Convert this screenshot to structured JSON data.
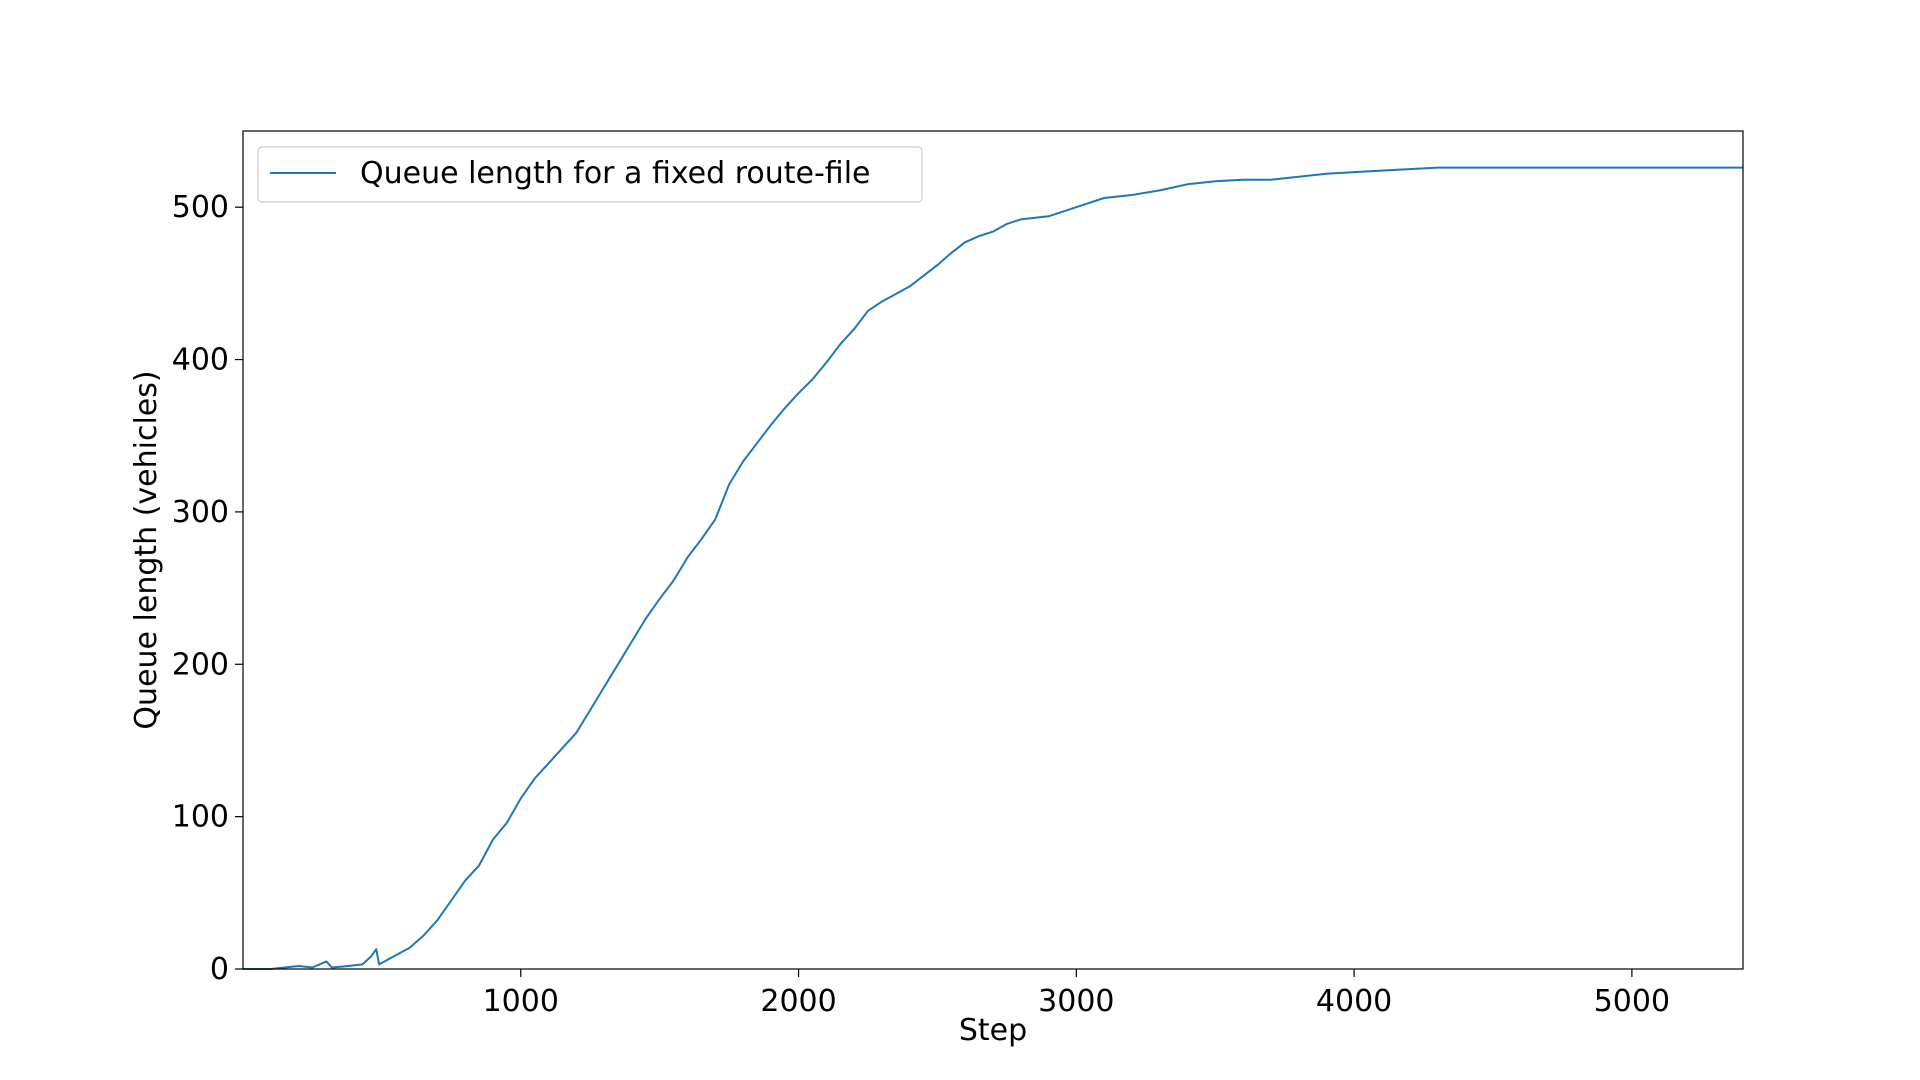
{
  "chart_data": {
    "type": "line",
    "title": "",
    "xlabel": "Step",
    "ylabel": "Queue length (vehicles)",
    "xlim": [
      0,
      5400
    ],
    "ylim": [
      0,
      550
    ],
    "x_ticks": [
      1000,
      2000,
      3000,
      4000,
      5000
    ],
    "y_ticks": [
      0,
      100,
      200,
      300,
      400,
      500
    ],
    "grid": false,
    "legend_position": "top-left",
    "series": [
      {
        "name": "Queue length for a fixed route-file",
        "color": "#1f77b4",
        "points": [
          [
            0,
            0
          ],
          [
            100,
            0
          ],
          [
            150,
            1
          ],
          [
            200,
            2
          ],
          [
            250,
            1
          ],
          [
            300,
            5
          ],
          [
            320,
            1
          ],
          [
            380,
            2
          ],
          [
            430,
            3
          ],
          [
            460,
            8
          ],
          [
            480,
            13
          ],
          [
            490,
            3
          ],
          [
            520,
            6
          ],
          [
            560,
            10
          ],
          [
            600,
            14
          ],
          [
            650,
            22
          ],
          [
            700,
            32
          ],
          [
            750,
            45
          ],
          [
            800,
            58
          ],
          [
            850,
            68
          ],
          [
            900,
            85
          ],
          [
            950,
            96
          ],
          [
            1000,
            112
          ],
          [
            1050,
            125
          ],
          [
            1100,
            135
          ],
          [
            1150,
            145
          ],
          [
            1200,
            155
          ],
          [
            1250,
            170
          ],
          [
            1300,
            185
          ],
          [
            1350,
            200
          ],
          [
            1400,
            215
          ],
          [
            1450,
            230
          ],
          [
            1500,
            243
          ],
          [
            1550,
            255
          ],
          [
            1600,
            270
          ],
          [
            1650,
            282
          ],
          [
            1700,
            295
          ],
          [
            1750,
            318
          ],
          [
            1800,
            333
          ],
          [
            1850,
            345
          ],
          [
            1900,
            357
          ],
          [
            1950,
            368
          ],
          [
            2000,
            378
          ],
          [
            2050,
            387
          ],
          [
            2100,
            398
          ],
          [
            2150,
            410
          ],
          [
            2200,
            420
          ],
          [
            2250,
            432
          ],
          [
            2300,
            438
          ],
          [
            2350,
            443
          ],
          [
            2400,
            448
          ],
          [
            2450,
            455
          ],
          [
            2500,
            462
          ],
          [
            2550,
            470
          ],
          [
            2600,
            477
          ],
          [
            2650,
            481
          ],
          [
            2700,
            484
          ],
          [
            2750,
            489
          ],
          [
            2800,
            492
          ],
          [
            2900,
            494
          ],
          [
            3000,
            500
          ],
          [
            3100,
            506
          ],
          [
            3200,
            508
          ],
          [
            3300,
            511
          ],
          [
            3400,
            515
          ],
          [
            3500,
            517
          ],
          [
            3600,
            518
          ],
          [
            3700,
            518
          ],
          [
            3800,
            520
          ],
          [
            3900,
            522
          ],
          [
            4000,
            523
          ],
          [
            4100,
            524
          ],
          [
            4200,
            525
          ],
          [
            4300,
            526
          ],
          [
            4400,
            526
          ],
          [
            5000,
            526
          ],
          [
            5400,
            526
          ]
        ]
      }
    ]
  }
}
